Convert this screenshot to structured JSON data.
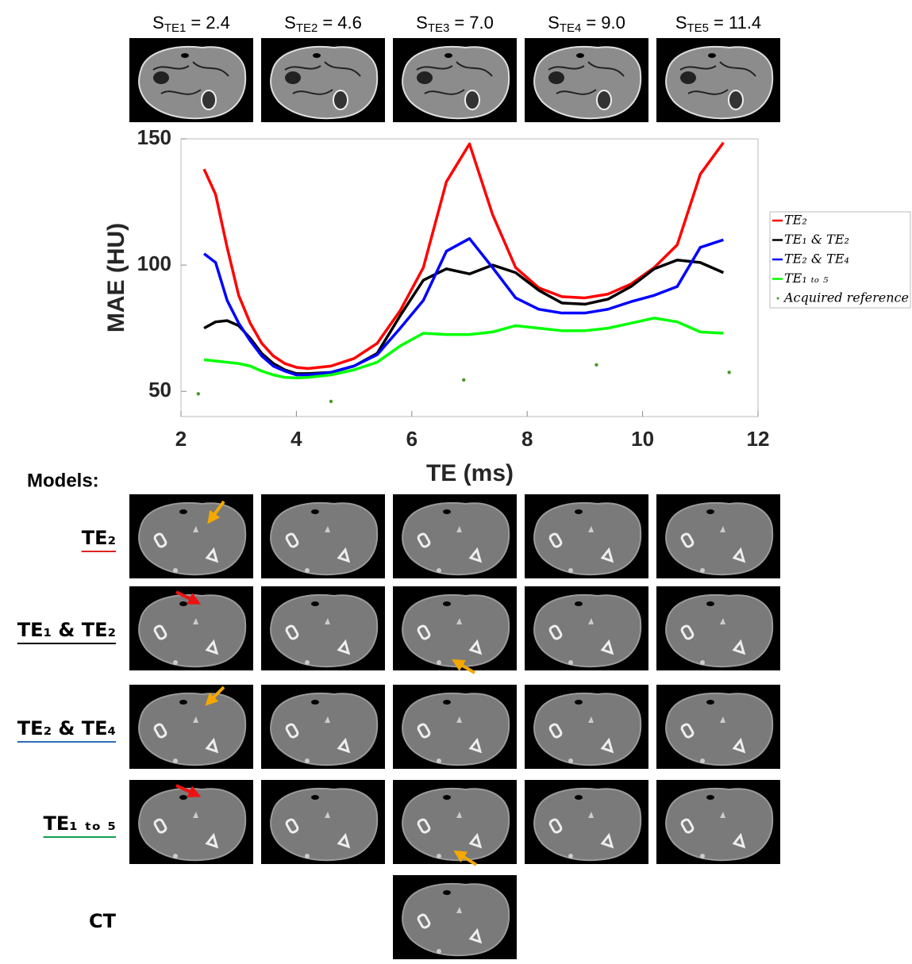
{
  "top_labels": [
    {
      "symbol": "S",
      "subscript": "TE1",
      "value": "= 2.4"
    },
    {
      "symbol": "S",
      "subscript": "TE2",
      "value": "= 4.6"
    },
    {
      "symbol": "S",
      "subscript": "TE3",
      "value": "= 7.0"
    },
    {
      "symbol": "S",
      "subscript": "TE4",
      "value": "= 9.0"
    },
    {
      "symbol": "S",
      "subscript": "TE5",
      "value": "= 11.4"
    }
  ],
  "chart_data": {
    "type": "line",
    "x_label": "TE (ms)",
    "y_label": "MAE (HU)",
    "xlim": [
      2,
      12
    ],
    "xticks": [
      2,
      4,
      6,
      8,
      10,
      12
    ],
    "ylim": [
      40,
      150
    ],
    "yticks": [
      50,
      100,
      150
    ],
    "x": [
      2.4,
      2.6,
      2.8,
      3.0,
      3.2,
      3.4,
      3.6,
      3.8,
      4.0,
      4.2,
      4.6,
      5.0,
      5.4,
      5.8,
      6.2,
      6.6,
      7.0,
      7.4,
      7.8,
      8.2,
      8.6,
      9.0,
      9.4,
      9.8,
      10.2,
      10.6,
      11.0,
      11.4
    ],
    "legend": "right",
    "series": [
      {
        "name": "TE₂",
        "color": "#ff0000",
        "values": [
          138,
          128,
          107,
          88,
          77,
          69,
          64,
          61,
          59.5,
          59,
          60,
          63,
          69,
          82,
          99,
          133,
          148,
          120,
          99,
          91,
          87.5,
          87,
          88.5,
          92.5,
          99,
          108,
          136,
          148.5
        ]
      },
      {
        "name": "TE₁ & TE₂",
        "color": "#000000",
        "values": [
          75,
          77.5,
          78,
          76,
          71,
          65,
          61,
          58.5,
          57,
          57,
          57.5,
          60,
          65,
          80,
          94,
          98.5,
          96.5,
          100,
          97,
          90,
          85,
          84.5,
          86.5,
          91.5,
          98.5,
          102,
          101,
          97
        ]
      },
      {
        "name": "TE₂ & TE₄",
        "color": "#0000ff",
        "values": [
          104.5,
          101,
          86,
          77,
          70,
          64,
          60,
          58,
          56.5,
          56.5,
          57.5,
          60,
          64.5,
          75,
          86,
          105.5,
          110.5,
          99,
          87,
          82.5,
          81,
          81,
          82.5,
          85.5,
          88,
          91.5,
          107,
          110
        ]
      },
      {
        "name": "TE₁ ₜₒ ₅",
        "color": "#00ff00",
        "values": [
          62.5,
          62,
          61.5,
          61,
          60,
          58,
          56.5,
          55.5,
          55.3,
          55.5,
          56.5,
          58.5,
          61.5,
          68,
          73,
          72.5,
          72.5,
          73.5,
          76,
          75,
          74,
          74,
          75,
          77,
          79,
          77.5,
          73.5,
          73
        ]
      },
      {
        "name": "Acquired reference",
        "color": "#4a9a2a",
        "style": "dots",
        "x": [
          2.3,
          4.6,
          6.9,
          9.2,
          11.5
        ],
        "values": [
          49,
          46,
          54.5,
          60.5,
          57.5
        ]
      }
    ]
  },
  "models_heading": "Models:",
  "models": [
    {
      "label": "TE₂",
      "underline_color": "#e02020"
    },
    {
      "label": "TE₁ & TE₂",
      "underline_color": "#000000"
    },
    {
      "label": "TE₂ & TE₄",
      "underline_color": "#2f6db5"
    },
    {
      "label": "TE₁ ₜₒ ₅",
      "underline_color": "#10a050"
    }
  ],
  "reference_label": "CT"
}
